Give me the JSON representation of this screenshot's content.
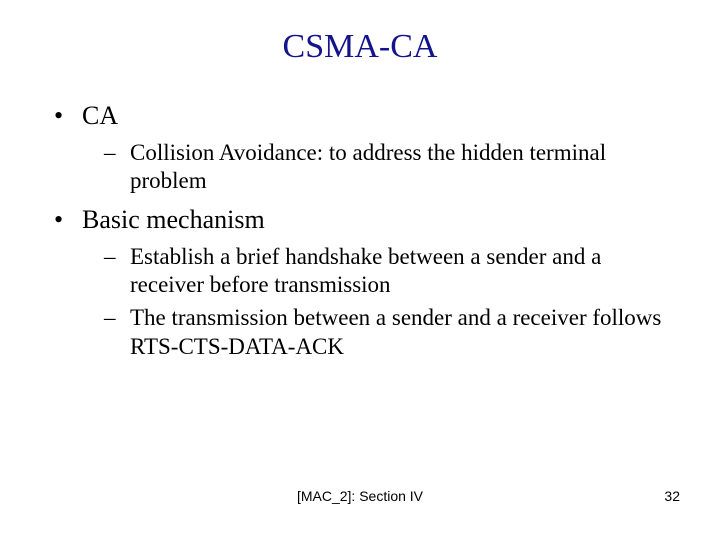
{
  "title": {
    "text": "CSMA-CA",
    "color": "#13138b",
    "fontsize": 34
  },
  "body": {
    "fontsize_l1": 26,
    "fontsize_l2": 23,
    "text_color": "#000000",
    "items": [
      {
        "label": "CA",
        "sub": [
          "Collision Avoidance: to address the hidden terminal problem"
        ]
      },
      {
        "label": "Basic mechanism",
        "sub": [
          "Establish a brief handshake between a sender and a receiver before transmission",
          "The transmission between a sender and a receiver follows RTS-CTS-DATA-ACK"
        ]
      }
    ]
  },
  "footer": {
    "reference": "[MAC_2]: Section IV",
    "page_number": "32",
    "fontsize": 14
  },
  "background_color": "#ffffff"
}
